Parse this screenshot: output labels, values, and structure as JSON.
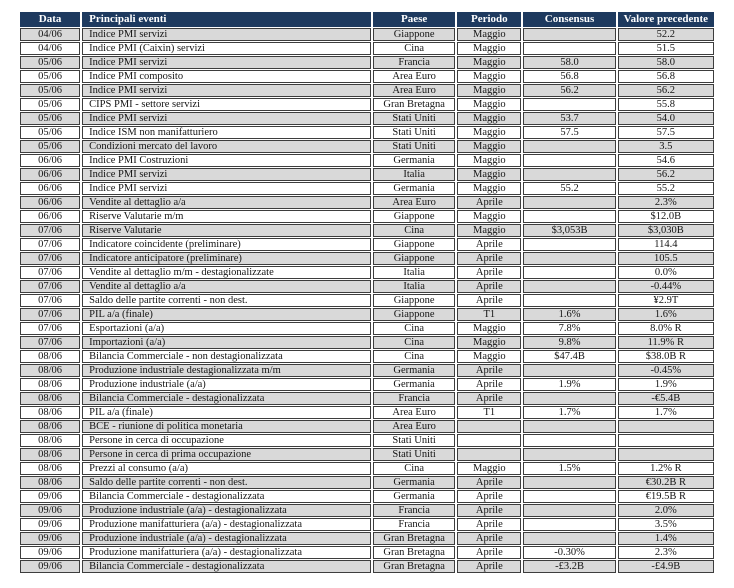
{
  "colors": {
    "header_bg": "#1E3A5F",
    "header_text": "#FFFFFF",
    "row_alt_bg": "#D9D9D9",
    "row_bg": "#FFFFFF",
    "border": "#3d3d3d"
  },
  "table": {
    "columns": [
      {
        "key": "data",
        "label": "Data"
      },
      {
        "key": "evento",
        "label": "Principali eventi"
      },
      {
        "key": "paese",
        "label": "Paese"
      },
      {
        "key": "periodo",
        "label": "Periodo"
      },
      {
        "key": "consensus",
        "label": "Consensus"
      },
      {
        "key": "valore",
        "label": "Valore precedente"
      }
    ],
    "rows": [
      [
        "04/06",
        "Indice PMI servizi",
        "Giappone",
        "Maggio",
        "",
        "52.2"
      ],
      [
        "04/06",
        "Indice PMI (Caixin) servizi",
        "Cina",
        "Maggio",
        "",
        "51.5"
      ],
      [
        "05/06",
        "Indice PMI servizi",
        "Francia",
        "Maggio",
        "58.0",
        "58.0"
      ],
      [
        "05/06",
        "Indice PMI composito",
        "Area Euro",
        "Maggio",
        "56.8",
        "56.8"
      ],
      [
        "05/06",
        "Indice PMI servizi",
        "Area Euro",
        "Maggio",
        "56.2",
        "56.2"
      ],
      [
        "05/06",
        "CIPS PMI - settore servizi",
        "Gran Bretagna",
        "Maggio",
        "",
        "55.8"
      ],
      [
        "05/06",
        "Indice PMI servizi",
        "Stati Uniti",
        "Maggio",
        "53.7",
        "54.0"
      ],
      [
        "05/06",
        "Indice ISM non manifatturiero",
        "Stati Uniti",
        "Maggio",
        "57.5",
        "57.5"
      ],
      [
        "05/06",
        "Condizioni mercato del lavoro",
        "Stati Uniti",
        "Maggio",
        "",
        "3.5"
      ],
      [
        "06/06",
        "Indice PMI  Costruzioni",
        "Germania",
        "Maggio",
        "",
        "54.6"
      ],
      [
        "06/06",
        "Indice PMI servizi",
        "Italia",
        "Maggio",
        "",
        "56.2"
      ],
      [
        "06/06",
        "Indice PMI servizi",
        "Germania",
        "Maggio",
        "55.2",
        "55.2"
      ],
      [
        "06/06",
        "Vendite al dettaglio a/a",
        "Area Euro",
        "Aprile",
        "",
        "2.3%"
      ],
      [
        "06/06",
        "Riserve Valutarie m/m",
        "Giappone",
        "Maggio",
        "",
        "$12.0B"
      ],
      [
        "07/06",
        "Riserve Valutarie",
        "Cina",
        "Maggio",
        "$3,053B",
        "$3,030B"
      ],
      [
        "07/06",
        "Indicatore coincidente (preliminare)",
        "Giappone",
        "Aprile",
        "",
        "114.4"
      ],
      [
        "07/06",
        "Indicatore anticipatore (preliminare)",
        "Giappone",
        "Aprile",
        "",
        "105.5"
      ],
      [
        "07/06",
        "Vendite al dettaglio m/m - destagionalizzate",
        "Italia",
        "Aprile",
        "",
        "0.0%"
      ],
      [
        "07/06",
        "Vendite al dettaglio a/a",
        "Italia",
        "Aprile",
        "",
        "-0.44%"
      ],
      [
        "07/06",
        "Saldo delle partite correnti -  non dest.",
        "Giappone",
        "Aprile",
        "",
        "¥2.9T"
      ],
      [
        "07/06",
        "PIL a/a (finale)",
        "Giappone",
        "T1",
        "1.6%",
        "1.6%"
      ],
      [
        "07/06",
        "Esportazioni (a/a)",
        "Cina",
        "Maggio",
        "7.8%",
        "8.0% R"
      ],
      [
        "07/06",
        "Importazioni (a/a)",
        "Cina",
        "Maggio",
        "9.8%",
        "11.9% R"
      ],
      [
        "08/06",
        "Bilancia Commerciale - non destagionalizzata",
        "Cina",
        "Maggio",
        "$47.4B",
        "$38.0B R"
      ],
      [
        "08/06",
        "Produzione industriale destagionalizzata m/m",
        "Germania",
        "Aprile",
        "",
        "-0.45%"
      ],
      [
        "08/06",
        "Produzione industriale (a/a)",
        "Germania",
        "Aprile",
        "1.9%",
        "1.9%"
      ],
      [
        "08/06",
        "Bilancia Commerciale - destagionalizzata",
        "Francia",
        "Aprile",
        "",
        "-€5.4B"
      ],
      [
        "08/06",
        "PIL a/a (finale)",
        "Area Euro",
        "T1",
        "1.7%",
        "1.7%"
      ],
      [
        "08/06",
        "BCE - riunione di politica monetaria",
        "Area Euro",
        "",
        "",
        ""
      ],
      [
        "08/06",
        "Persone in cerca di occupazione",
        "Stati Uniti",
        "",
        "",
        ""
      ],
      [
        "08/06",
        "Persone in cerca di prima occupazione",
        "Stati Uniti",
        "",
        "",
        ""
      ],
      [
        "08/06",
        "Prezzi al consumo   (a/a)",
        "Cina",
        "Maggio",
        "1.5%",
        "1.2% R"
      ],
      [
        "08/06",
        "Saldo delle partite correnti -  non dest.",
        "Germania",
        "Aprile",
        "",
        "€30.2B R"
      ],
      [
        "09/06",
        "Bilancia Commerciale - destagionalizzata",
        "Germania",
        "Aprile",
        "",
        "€19.5B R"
      ],
      [
        "09/06",
        "Produzione industriale (a/a) - destagionalizzata",
        "Francia",
        "Aprile",
        "",
        "2.0%"
      ],
      [
        "09/06",
        "Produzione manifatturiera (a/a) -  destagionalizzata",
        "Francia",
        "Aprile",
        "",
        "3.5%"
      ],
      [
        "09/06",
        "Produzione industriale (a/a) - destagionalizzata",
        "Gran Bretagna",
        "Aprile",
        "",
        "1.4%"
      ],
      [
        "09/06",
        "Produzione manifatturiera (a/a) -  destagionalizzata",
        "Gran Bretagna",
        "Aprile",
        "-0.30%",
        "2.3%"
      ],
      [
        "09/06",
        "Bilancia Commerciale - destagionalizzata",
        "Gran Bretagna",
        "Aprile",
        "-£3.2B",
        "-£4.9B"
      ]
    ]
  }
}
